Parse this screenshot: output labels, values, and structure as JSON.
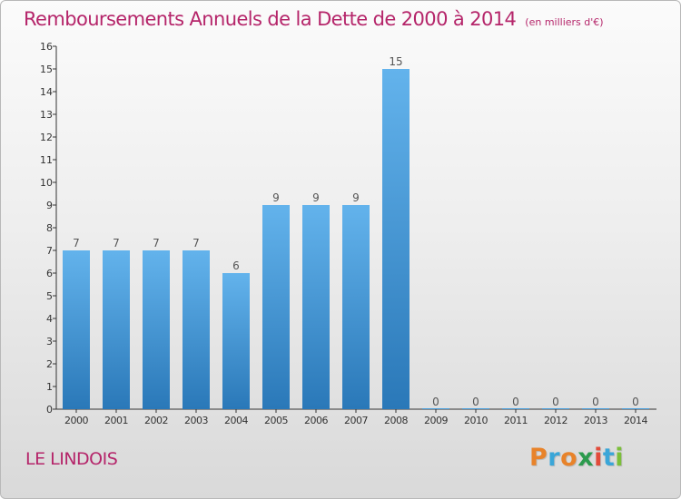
{
  "chart_data": {
    "type": "bar",
    "title": "Remboursements Annuels de la Dette de 2000 à 2014",
    "subtitle": "(en milliers d'€)",
    "categories": [
      "2000",
      "2001",
      "2002",
      "2003",
      "2004",
      "2005",
      "2006",
      "2007",
      "2008",
      "2009",
      "2010",
      "2011",
      "2012",
      "2013",
      "2014"
    ],
    "values": [
      7,
      7,
      7,
      7,
      6,
      9,
      9,
      9,
      15,
      0,
      0,
      0,
      0,
      0,
      0
    ],
    "ylim": [
      0,
      16
    ],
    "yticks": [
      0,
      1,
      2,
      3,
      4,
      5,
      6,
      7,
      8,
      9,
      10,
      11,
      12,
      13,
      14,
      15,
      16
    ],
    "bar_color": "#4a9fdc",
    "grid": false,
    "data_labels": true
  },
  "footer": {
    "place": "LE LINDOIS",
    "logo": "Proxiti",
    "logo_colors": [
      "#e8832a",
      "#3aa6d8",
      "#e8832a",
      "#2c9b4e",
      "#e24b3a",
      "#3aa6d8",
      "#7bbf3a"
    ]
  }
}
